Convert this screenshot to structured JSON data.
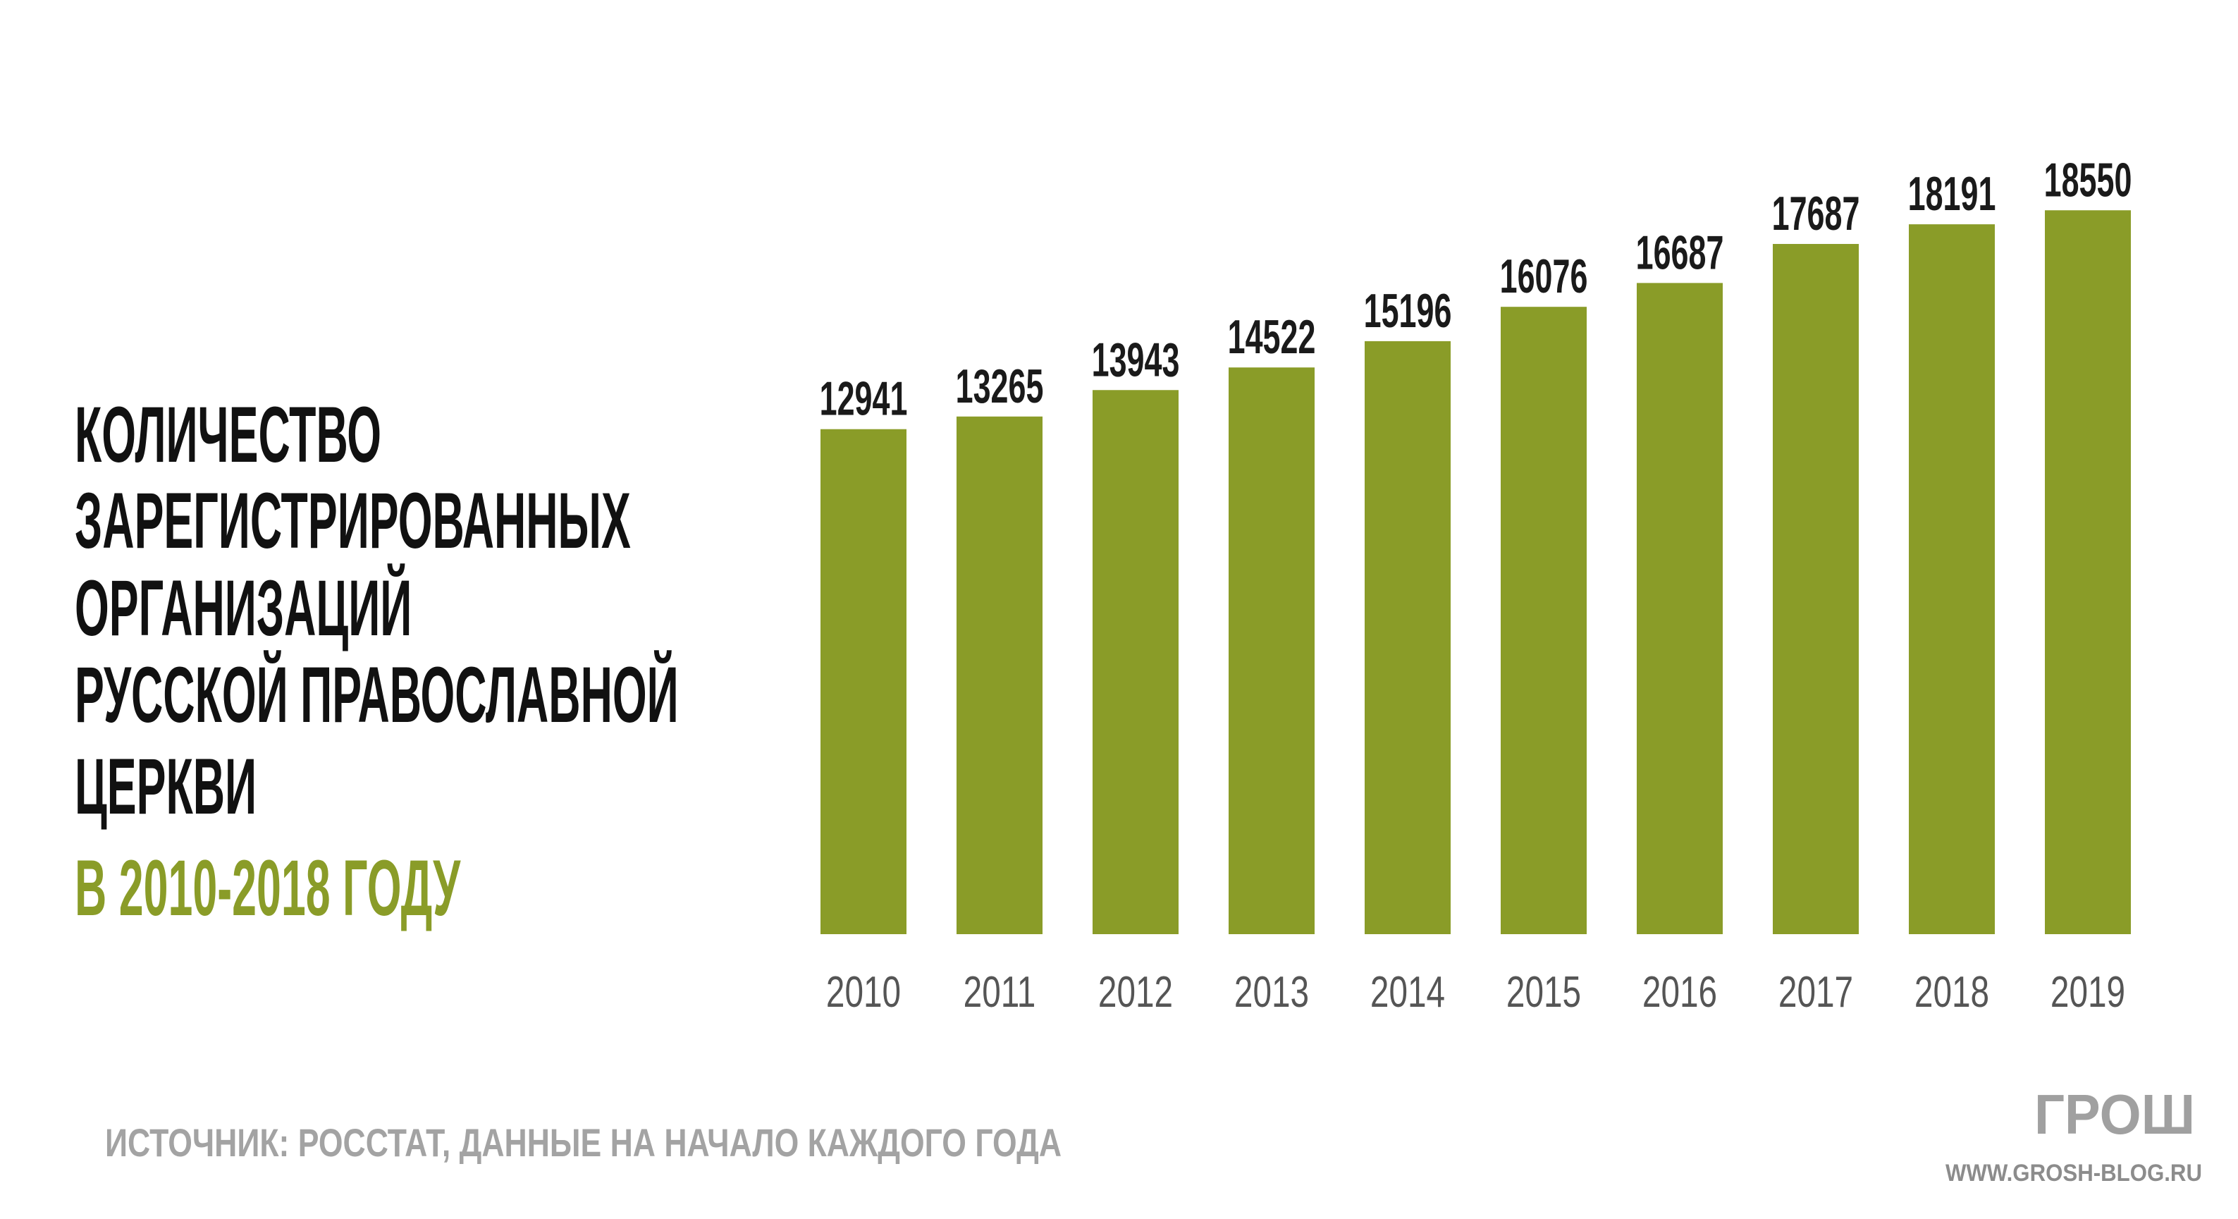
{
  "chart_data": {
    "type": "bar",
    "title": [
      "КОЛИЧЕСТВО",
      "ЗАРЕГИСТРИРОВАННЫХ",
      "ОРГАНИЗАЦИЙ",
      "РУССКОЙ ПРАВОСЛАВНОЙ",
      "ЦЕРКВИ"
    ],
    "subtitle": "В 2010-2018 ГОДУ",
    "categories": [
      "2010",
      "2011",
      "2012",
      "2013",
      "2014",
      "2015",
      "2016",
      "2017",
      "2018",
      "2019"
    ],
    "values": [
      12941,
      13265,
      13943,
      14522,
      15196,
      16076,
      16687,
      17687,
      18191,
      18550
    ],
    "color": "#8a9c28",
    "ylim": [
      0,
      20000
    ],
    "source": "ИСТОЧНИК: РОССТАТ, ДАННЫЕ НА НАЧАЛО КАЖДОГО ГОДА",
    "logo": "ГРОШ",
    "website": "WWW.GROSH-BLOG.RU"
  }
}
